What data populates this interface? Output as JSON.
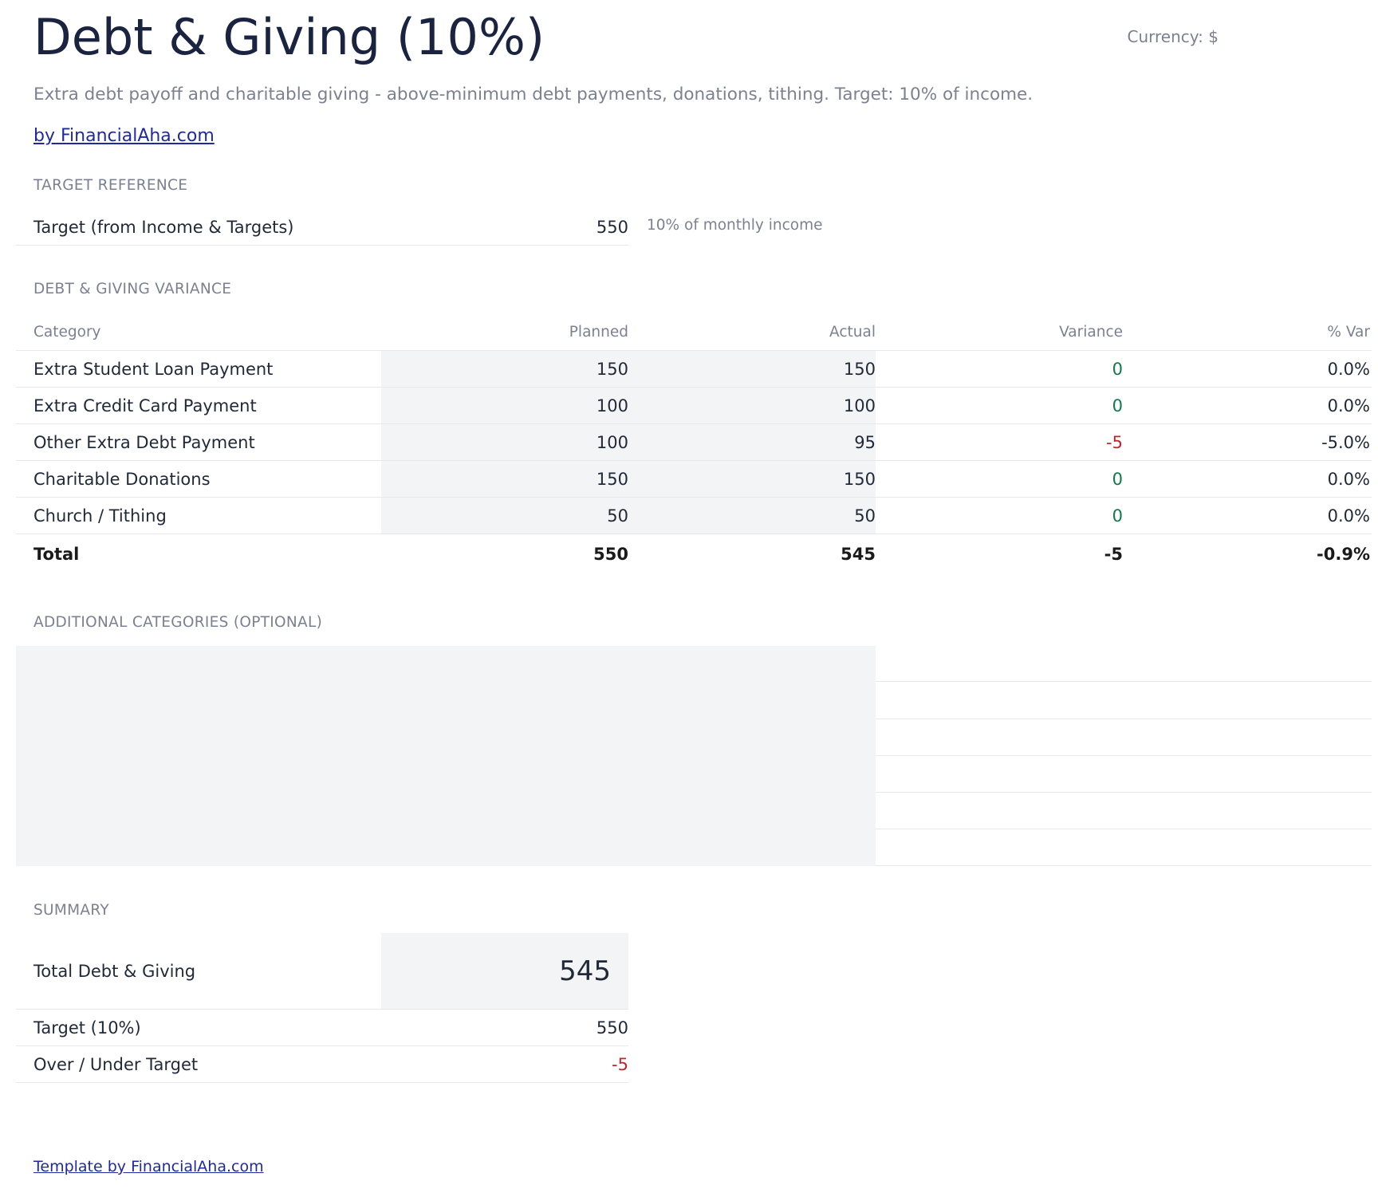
{
  "header": {
    "title": "Debt & Giving (10%)",
    "currency": "Currency: $",
    "subtitle": "Extra debt payoff and charitable giving - above-minimum debt payments, donations, tithing. Target: 10% of income.",
    "by_link": "by FinancialAha.com"
  },
  "target_reference": {
    "section_label": "TARGET REFERENCE",
    "label": "Target (from Income & Targets)",
    "value": "550",
    "note": "10% of monthly income"
  },
  "variance": {
    "section_label": "DEBT & GIVING VARIANCE",
    "columns": [
      "Category",
      "Planned",
      "Actual",
      "Variance",
      "% Var"
    ],
    "rows": [
      {
        "category": "Extra Student Loan Payment",
        "planned": "150",
        "actual": "150",
        "variance": "0",
        "pct": "0.0%"
      },
      {
        "category": "Extra Credit Card Payment",
        "planned": "100",
        "actual": "100",
        "variance": "0",
        "pct": "0.0%"
      },
      {
        "category": "Other Extra Debt Payment",
        "planned": "100",
        "actual": "95",
        "variance": "-5",
        "pct": "-5.0%"
      },
      {
        "category": "Charitable Donations",
        "planned": "150",
        "actual": "150",
        "variance": "0",
        "pct": "0.0%"
      },
      {
        "category": "Church / Tithing",
        "planned": "50",
        "actual": "50",
        "variance": "0",
        "pct": "0.0%"
      }
    ],
    "total": {
      "label": "Total",
      "planned": "550",
      "actual": "545",
      "variance": "-5",
      "pct": "-0.9%"
    }
  },
  "additional": {
    "section_label": "ADDITIONAL CATEGORIES (OPTIONAL)"
  },
  "summary": {
    "section_label": "SUMMARY",
    "total_label": "Total Debt & Giving",
    "total_value": "545",
    "target_label": "Target (10%)",
    "target_value": "550",
    "over_under_label": "Over / Under Target",
    "over_under_value": "-5"
  },
  "footer": {
    "link": "Template by FinancialAha.com"
  },
  "colors": {
    "positive": "#0f7a4a",
    "negative": "#c0262d",
    "input_shade": "#f3f4f6"
  }
}
